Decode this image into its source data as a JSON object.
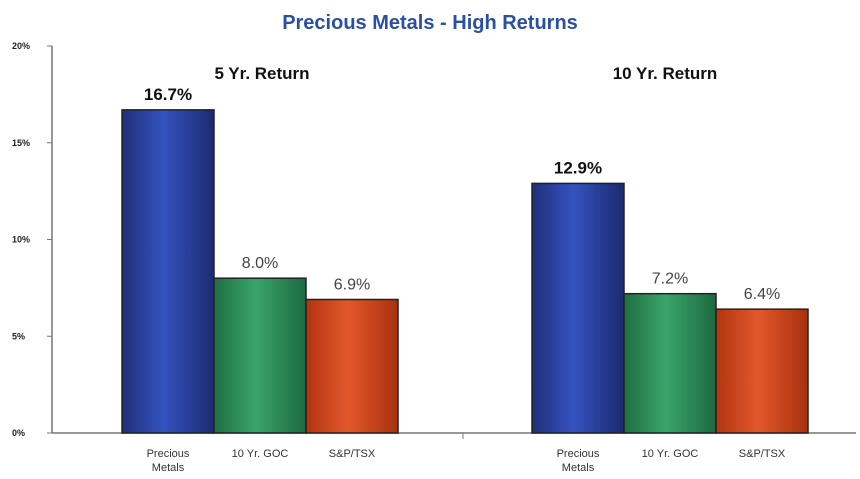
{
  "chart_data": {
    "type": "bar",
    "title": "Precious Metals - High Returns",
    "ylim": [
      0,
      20
    ],
    "yticks": [
      "0%",
      "5%",
      "10%",
      "15%",
      "20%"
    ],
    "legend": "none",
    "grid": false,
    "groups": [
      {
        "title": "5 Yr. Return",
        "categories": [
          "Precious Metals",
          "10 Yr. GOC",
          "S&P/TSX"
        ],
        "values": [
          16.7,
          8.0,
          6.9
        ],
        "labels": [
          "16.7%",
          "8.0%",
          "6.9%"
        ]
      },
      {
        "title": "10 Yr. Return",
        "categories": [
          "Precious Metals",
          "10 Yr. GOC",
          "S&P/TSX"
        ],
        "values": [
          12.9,
          7.2,
          6.4
        ],
        "labels": [
          "12.9%",
          "7.2%",
          "6.4%"
        ]
      }
    ],
    "colors": [
      "#2a3f9c",
      "#2e8b57",
      "#d2471f"
    ]
  }
}
